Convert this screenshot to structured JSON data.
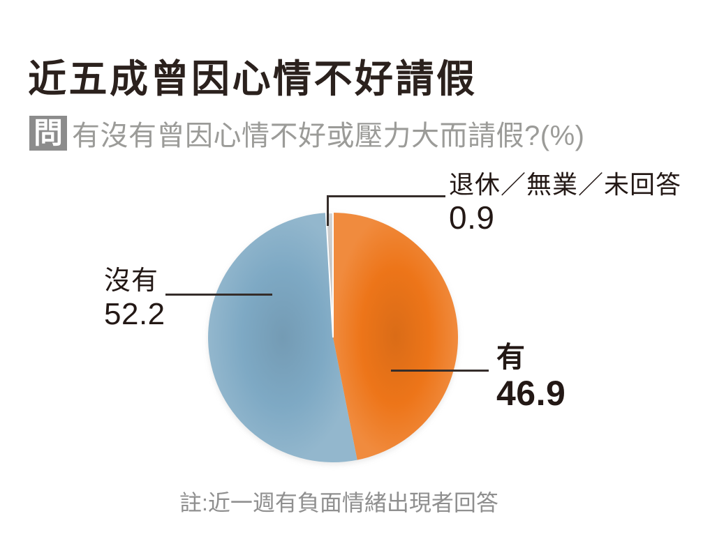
{
  "header": {
    "title": "近五成曾因心情不好請假",
    "question_badge": "問",
    "question_text": "有沒有曾因心情不好或壓力大而請假?(%)"
  },
  "footer": {
    "note": "註:近一週有負面情緒出現者回答"
  },
  "chart_data": {
    "type": "pie",
    "title": "有沒有曾因心情不好或壓力大而請假?(%)",
    "unit": "%",
    "direction": "clockwise",
    "start_angle": "12-oclock",
    "legend_position": "callout-labels",
    "slices": [
      {
        "key": "yes",
        "label": "有",
        "value": 46.9,
        "color": "#ED7519",
        "bold": true
      },
      {
        "key": "no",
        "label": "沒有",
        "value": 52.2,
        "color": "#7EA9C4",
        "bold": false
      },
      {
        "key": "retired-unemployed-no-answer",
        "label": "退休／無業／未回答",
        "value": 0.9,
        "color": "#CBCBCB",
        "bold": false,
        "stroke": "#FFFFFF"
      }
    ]
  },
  "colors": {
    "background": "#FFFFFF",
    "title_text": "#2B211D",
    "label_text": "#231815",
    "muted_text": "#9B9B98",
    "note_text": "#8F8F8F",
    "badge_bg": "#8C8C8C",
    "badge_text": "#FFFFFF",
    "leader_line": "#352D2A"
  }
}
